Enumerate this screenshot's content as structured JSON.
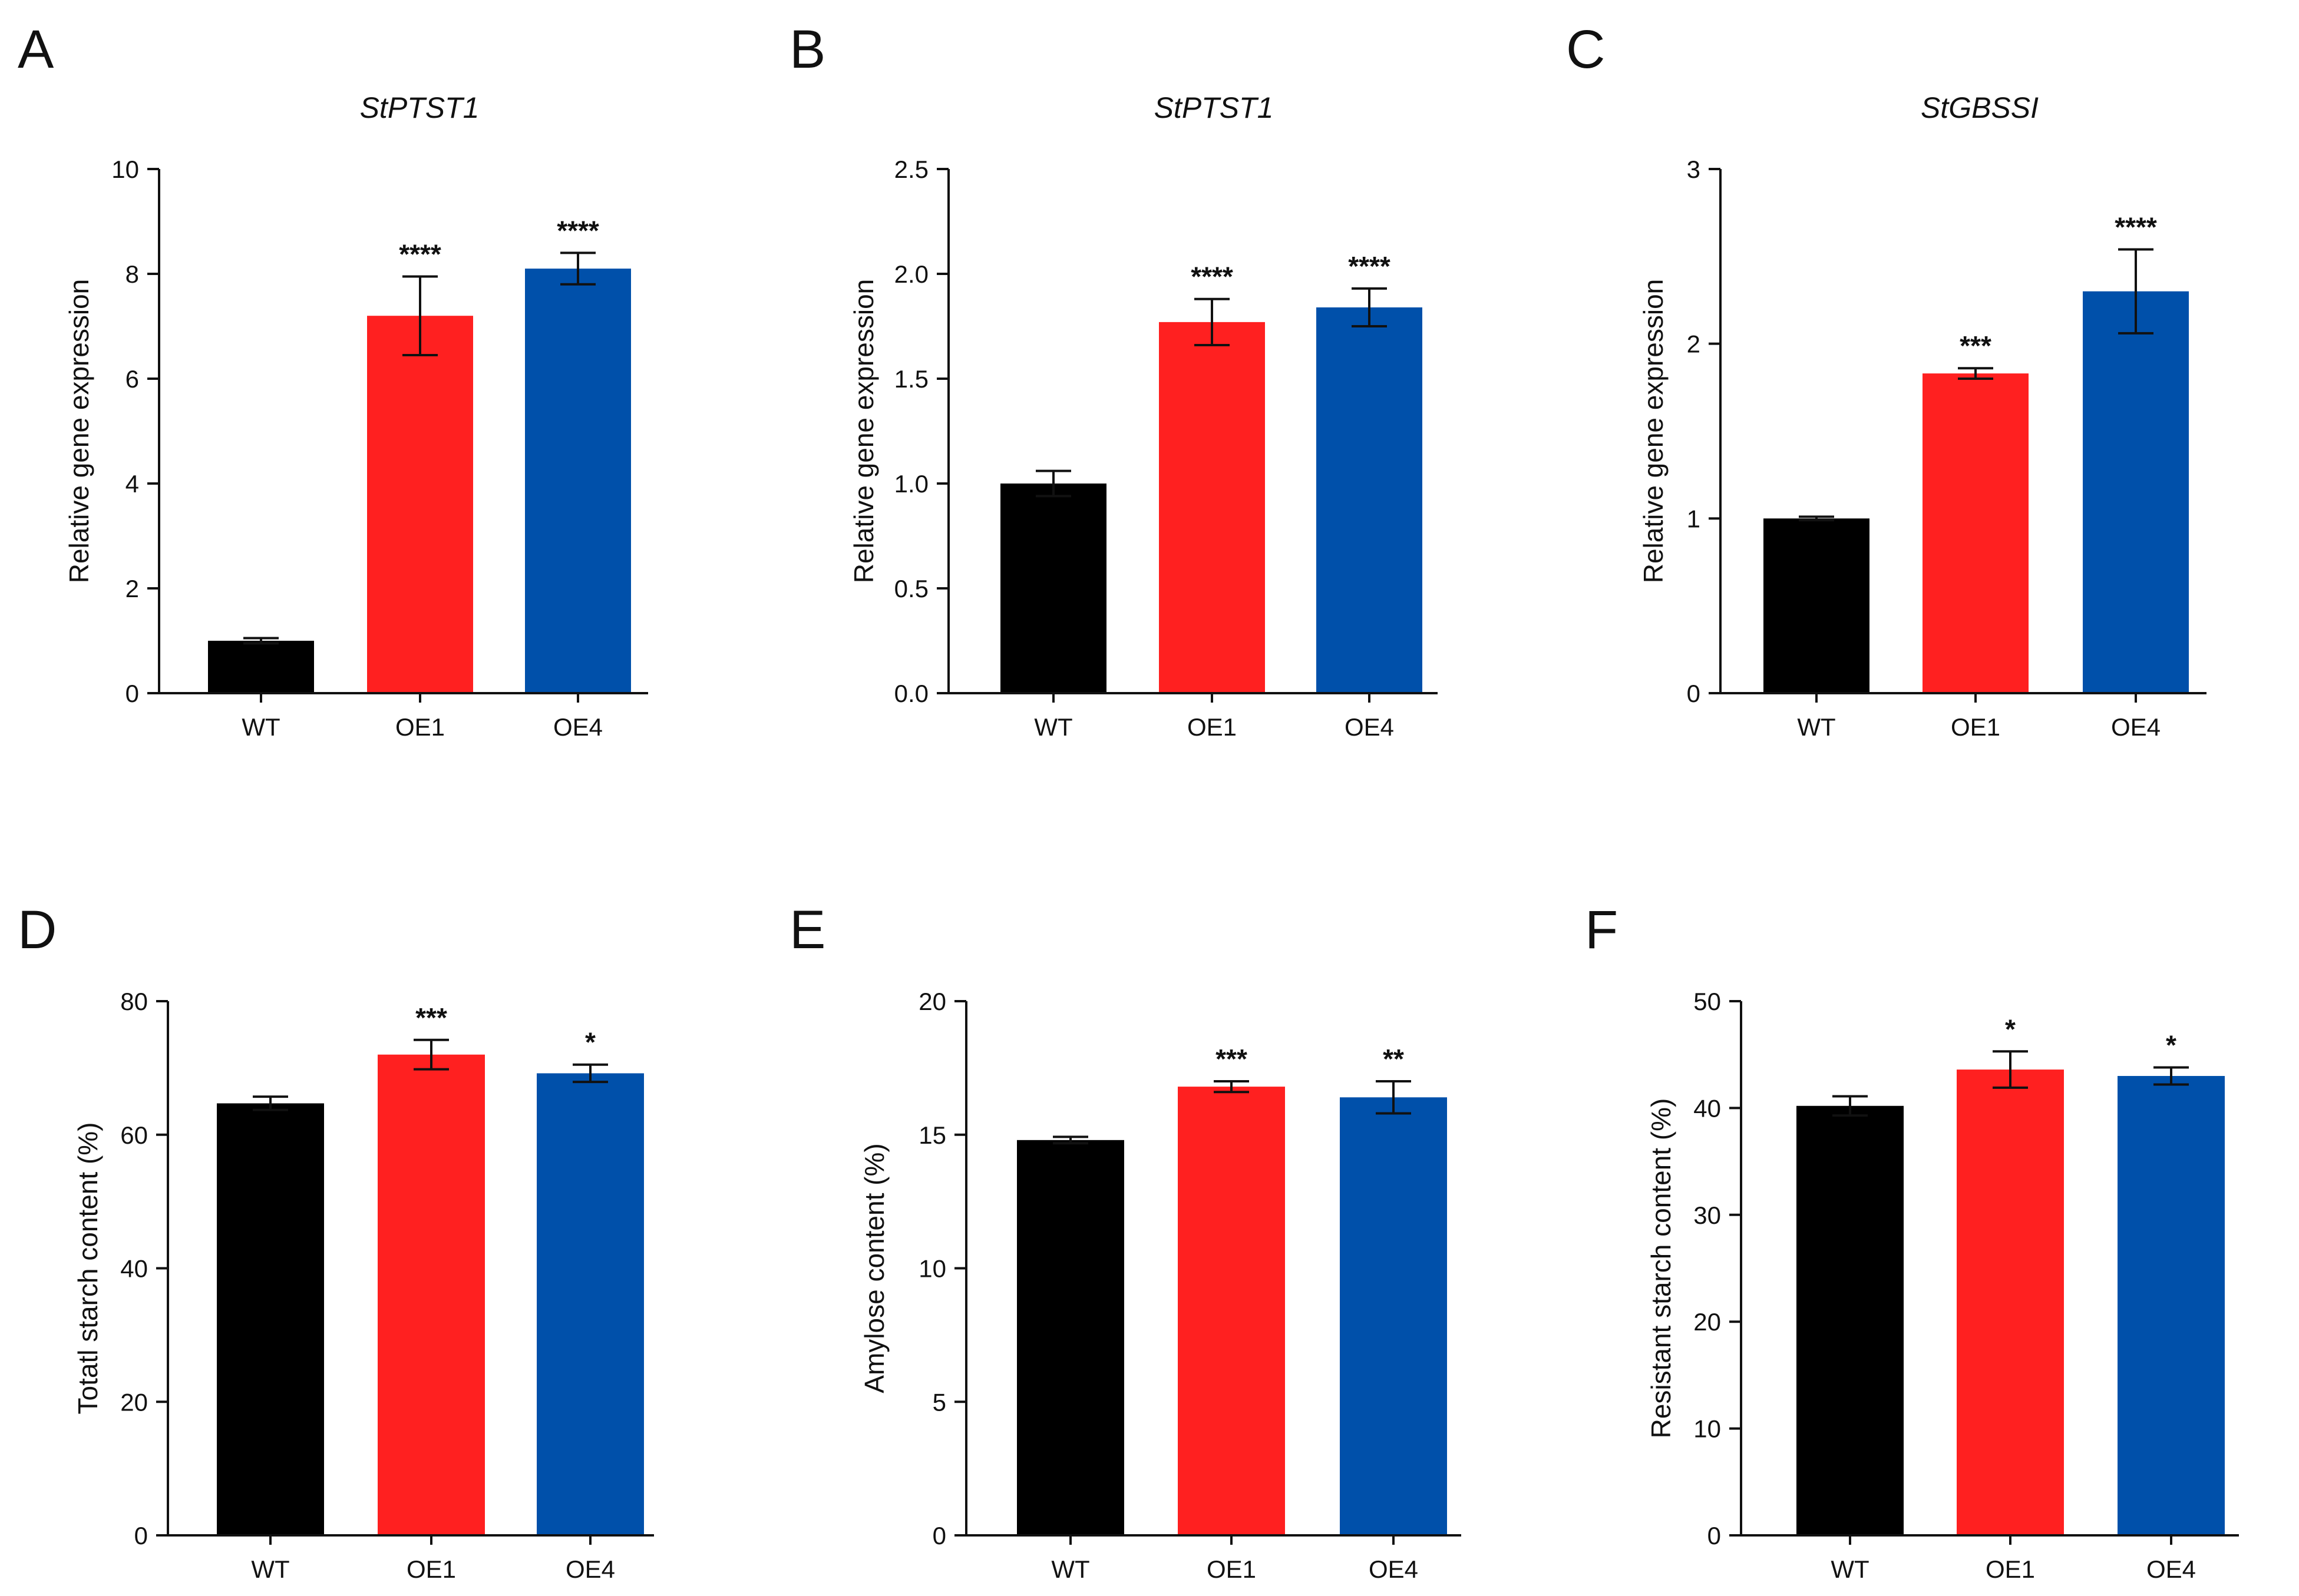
{
  "chart_data": [
    {
      "panel": "A",
      "type": "bar",
      "title": "StPTST1",
      "ylabel": "Relative gene expression",
      "xlabel": "",
      "categories": [
        "WT",
        "OE1",
        "OE4"
      ],
      "values": [
        1.0,
        7.2,
        8.1
      ],
      "errors": [
        0.05,
        0.75,
        0.3
      ],
      "significance": [
        "",
        "****",
        "****"
      ],
      "ylim": [
        0,
        10
      ],
      "yticks": [
        "0",
        "2",
        "4",
        "6",
        "8",
        "10"
      ],
      "colors": [
        "#000000",
        "#ff2020",
        "#0050aa"
      ],
      "grid": false,
      "legend": "none"
    },
    {
      "panel": "B",
      "type": "bar",
      "title": "StPTST1",
      "ylabel": "Relative gene expression",
      "xlabel": "",
      "categories": [
        "WT",
        "OE1",
        "OE4"
      ],
      "values": [
        1.0,
        1.77,
        1.84
      ],
      "errors": [
        0.06,
        0.11,
        0.09
      ],
      "significance": [
        "",
        "****",
        "****"
      ],
      "ylim": [
        0,
        2.5
      ],
      "yticks": [
        "0.0",
        "0.5",
        "1.0",
        "1.5",
        "2.0",
        "2.5"
      ],
      "colors": [
        "#000000",
        "#ff2020",
        "#0050aa"
      ],
      "grid": false,
      "legend": "none"
    },
    {
      "panel": "C",
      "type": "bar",
      "title": "StGBSSI",
      "ylabel": "Relative gene expression",
      "xlabel": "",
      "categories": [
        "WT",
        "OE1",
        "OE4"
      ],
      "values": [
        1.0,
        1.83,
        2.3
      ],
      "errors": [
        0.01,
        0.03,
        0.24
      ],
      "significance": [
        "",
        "***",
        "****"
      ],
      "ylim": [
        0,
        3
      ],
      "yticks": [
        "0",
        "1",
        "2",
        "3"
      ],
      "colors": [
        "#000000",
        "#ff2020",
        "#0050aa"
      ],
      "grid": false,
      "legend": "none"
    },
    {
      "panel": "D",
      "type": "bar",
      "title": "",
      "ylabel": "Totatl starch content (%)",
      "xlabel": "",
      "categories": [
        "WT",
        "OE1",
        "OE4"
      ],
      "values": [
        64.7,
        72.0,
        69.2
      ],
      "errors": [
        1.0,
        2.2,
        1.3
      ],
      "significance": [
        "",
        "***",
        "*"
      ],
      "ylim": [
        0,
        80
      ],
      "yticks": [
        "0",
        "20",
        "40",
        "60",
        "80"
      ],
      "colors": [
        "#000000",
        "#ff2020",
        "#0050aa"
      ],
      "grid": false,
      "legend": "none"
    },
    {
      "panel": "E",
      "type": "bar",
      "title": "",
      "ylabel": "Amylose content (%)",
      "xlabel": "",
      "categories": [
        "WT",
        "OE1",
        "OE4"
      ],
      "values": [
        14.8,
        16.8,
        16.4
      ],
      "errors": [
        0.12,
        0.2,
        0.6
      ],
      "significance": [
        "",
        "***",
        "**"
      ],
      "ylim": [
        0,
        20
      ],
      "yticks": [
        "0",
        "5",
        "10",
        "15",
        "20"
      ],
      "colors": [
        "#000000",
        "#ff2020",
        "#0050aa"
      ],
      "grid": false,
      "legend": "none"
    },
    {
      "panel": "F",
      "type": "bar",
      "title": "",
      "ylabel": "Resistant starch content (%)",
      "xlabel": "",
      "categories": [
        "WT",
        "OE1",
        "OE4"
      ],
      "values": [
        40.2,
        43.6,
        43.0
      ],
      "errors": [
        0.9,
        1.7,
        0.8
      ],
      "significance": [
        "",
        "*",
        "*"
      ],
      "ylim": [
        0,
        50
      ],
      "yticks": [
        "0",
        "10",
        "20",
        "30",
        "40",
        "50"
      ],
      "colors": [
        "#000000",
        "#ff2020",
        "#0050aa"
      ],
      "grid": false,
      "legend": "none"
    }
  ]
}
